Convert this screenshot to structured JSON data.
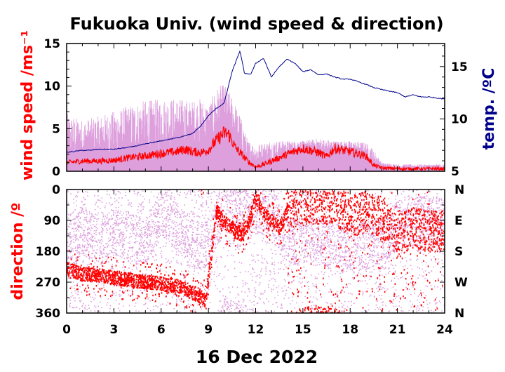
{
  "chart_data": [
    {
      "type": "line",
      "title": "Fukuoka Univ. (wind speed & direction)",
      "xlabel": "16 Dec 2022",
      "ylabel": "wind speed /ms⁻¹",
      "y2label": "temp. /ºC",
      "xlim": [
        0,
        24
      ],
      "ylim": [
        0,
        15
      ],
      "y2lim": [
        5,
        17.2
      ],
      "x_ticks": [
        "0",
        "3",
        "6",
        "9",
        "12",
        "15",
        "18",
        "21",
        "24"
      ],
      "y_ticks": [
        "0",
        "5",
        "10",
        "15"
      ],
      "y2_ticks": [
        "5",
        "10",
        "15"
      ],
      "grid": false,
      "colors": {
        "gust": "#dda0dd",
        "mean": "#ff0000",
        "temp": "#00008b"
      },
      "series": [
        {
          "role": "gust",
          "x": [
            0,
            1,
            2,
            3,
            4,
            5,
            6,
            7,
            8,
            8.5,
            9,
            9.5,
            10,
            10.5,
            11,
            11.5,
            12,
            13,
            14,
            15,
            16,
            17,
            18,
            19,
            19.5,
            20,
            21,
            22,
            23,
            24
          ],
          "values": [
            6.5,
            5.8,
            6.2,
            6.8,
            7.5,
            8,
            8.2,
            8.3,
            8,
            8.3,
            7.5,
            9.5,
            10,
            8.5,
            6.5,
            3.5,
            3,
            3.5,
            3.5,
            3.5,
            3.8,
            3.5,
            3.5,
            3.3,
            2.5,
            1,
            0.8,
            0.8,
            0.8,
            0.8
          ]
        },
        {
          "role": "mean",
          "x": [
            0,
            1,
            2,
            3,
            4,
            5,
            6,
            7,
            7.5,
            8,
            8.5,
            9,
            9.5,
            10,
            10.3,
            10.7,
            11,
            11.5,
            12,
            12.5,
            13,
            14,
            15,
            16,
            16.5,
            17,
            18,
            19,
            19.5,
            20,
            21,
            22,
            23,
            24
          ],
          "values": [
            1,
            1.2,
            1.2,
            1.3,
            1.6,
            1.8,
            2.1,
            2.3,
            2.6,
            2.3,
            2.2,
            2.5,
            3.6,
            4.5,
            4.3,
            2.8,
            2.2,
            1.2,
            0.5,
            0.8,
            1.2,
            2,
            2.7,
            2.2,
            1.7,
            2.7,
            2.3,
            1.8,
            0.7,
            0.4,
            0.3,
            0.3,
            0.3,
            0.3
          ]
        },
        {
          "role": "temp",
          "x": [
            0,
            0.5,
            1,
            1.5,
            2,
            3,
            4,
            5,
            6,
            7,
            8,
            8.5,
            9,
            9.5,
            10,
            10.5,
            11,
            11.3,
            11.7,
            12,
            12.5,
            13,
            13.5,
            14,
            14.5,
            15,
            15.5,
            16,
            16.5,
            17,
            17.5,
            18,
            19,
            19.5,
            20,
            21,
            21.5,
            22,
            22.5,
            23,
            24
          ],
          "values": [
            6.8,
            6.9,
            7,
            7,
            7.1,
            7.1,
            7.3,
            7.6,
            7.9,
            8.2,
            8.6,
            9.3,
            10.3,
            11,
            11.5,
            14.5,
            16.5,
            14.3,
            14.3,
            15.3,
            15.8,
            14,
            15,
            15.7,
            15.3,
            14.5,
            14.7,
            14.2,
            14.3,
            14,
            13.8,
            13.8,
            13.3,
            13,
            12.8,
            12.5,
            12.1,
            12.3,
            12.1,
            12.1,
            11.9
          ]
        }
      ]
    },
    {
      "type": "scatter",
      "ylabel": "direction /º",
      "xlim": [
        0,
        24
      ],
      "ylim": [
        360,
        0
      ],
      "y_ticks": [
        "0",
        "90",
        "180",
        "270",
        "360"
      ],
      "y2_ticks": [
        "N",
        "E",
        "S",
        "W",
        "N"
      ],
      "grid": false,
      "series": [
        {
          "role": "gust-direction",
          "x": [
            0,
            1,
            2,
            3,
            4,
            5,
            6,
            7,
            8,
            9,
            10,
            11,
            12,
            13,
            14,
            15,
            16,
            17,
            18,
            19,
            20,
            21,
            22,
            23,
            24
          ],
          "values": [
            180,
            120,
            150,
            120,
            140,
            150,
            60,
            110,
            160,
            160,
            30,
            40,
            60,
            60,
            150,
            150,
            150,
            170,
            170,
            160,
            160,
            100,
            90,
            90,
            90
          ]
        },
        {
          "role": "mean-direction",
          "x": [
            0,
            1,
            2,
            3,
            4,
            5,
            6,
            7,
            8,
            8.8,
            9.5,
            10,
            10.5,
            11,
            11.5,
            12,
            12.5,
            13,
            13.5,
            14,
            15,
            16,
            17,
            18,
            19,
            20,
            21,
            22,
            23,
            24
          ],
          "values": [
            230,
            245,
            248,
            255,
            262,
            268,
            272,
            280,
            300,
            320,
            60,
            95,
            110,
            130,
            100,
            20,
            70,
            90,
            110,
            60,
            40,
            40,
            40,
            80,
            60,
            80,
            130,
            110,
            120,
            120
          ]
        }
      ]
    }
  ]
}
